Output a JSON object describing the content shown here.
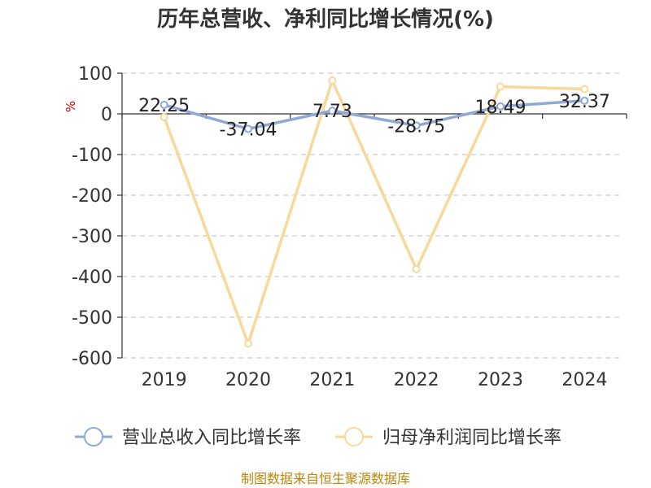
{
  "chart_data": {
    "type": "line",
    "title": "历年总营收、净利同比增长情况(%)",
    "ylabel": "%",
    "categories": [
      "2019",
      "2020",
      "2021",
      "2022",
      "2023",
      "2024"
    ],
    "ylim": [
      -600,
      100
    ],
    "yticks": [
      100,
      0,
      -100,
      -200,
      -300,
      -400,
      -500,
      -600
    ],
    "grid": true,
    "legend_position": "bottom",
    "series": [
      {
        "name": "营业总收入同比增长率",
        "values": [
          22.25,
          -37.04,
          7.73,
          -28.75,
          18.49,
          32.37
        ],
        "labels": [
          "22.25",
          "-37.04",
          "7.73",
          "-28.75",
          "18.49",
          "32.37"
        ],
        "color": "#8fa9d6"
      },
      {
        "name": "归母净利润同比增长率",
        "values": [
          -8,
          -565,
          82,
          -382,
          67,
          61
        ],
        "color": "#f9d89c"
      }
    ]
  },
  "source": "制图数据来自恒生聚源数据库"
}
